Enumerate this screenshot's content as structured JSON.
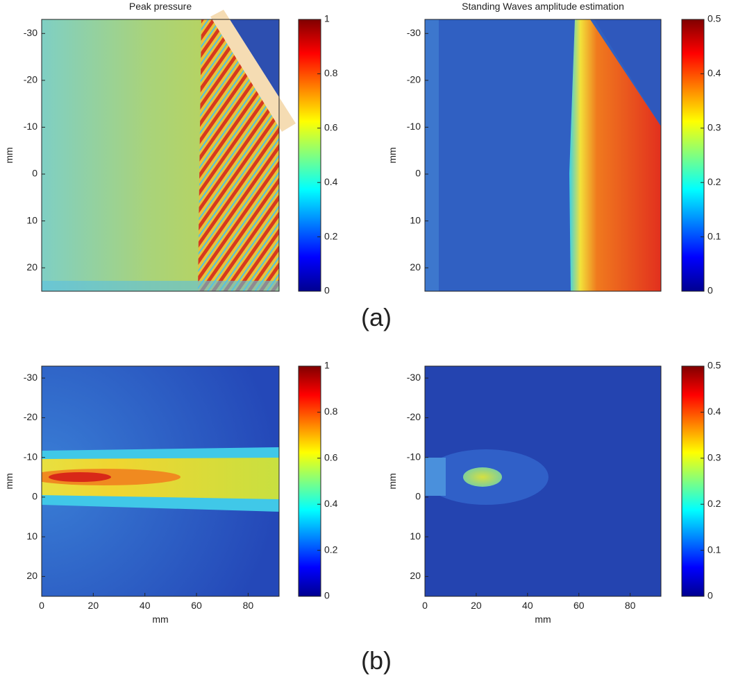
{
  "chart_data": [
    {
      "type": "heatmap",
      "title": "Peak pressure",
      "ylabel": "mm",
      "xlim": [
        0,
        92
      ],
      "ylim": [
        -33,
        25
      ],
      "yticks": [
        -30,
        -20,
        -10,
        0,
        10,
        20
      ],
      "colormap": "jet",
      "clim": [
        0,
        1
      ],
      "cticks": [
        0,
        0.2,
        0.4,
        0.6,
        0.8,
        1
      ]
    },
    {
      "type": "heatmap",
      "title": "Standing Waves amplitude estimation",
      "ylabel": "mm",
      "xlim": [
        0,
        92
      ],
      "ylim": [
        -33,
        25
      ],
      "yticks": [
        -30,
        -20,
        -10,
        0,
        10,
        20
      ],
      "colormap": "jet",
      "clim": [
        0,
        0.5
      ],
      "cticks": [
        0,
        0.1,
        0.2,
        0.3,
        0.4,
        0.5
      ]
    },
    {
      "type": "heatmap",
      "xlabel": "mm",
      "ylabel": "mm",
      "xlim": [
        0,
        92
      ],
      "xticks": [
        0,
        20,
        40,
        60,
        80
      ],
      "ylim": [
        -33,
        25
      ],
      "yticks": [
        -30,
        -20,
        -10,
        0,
        10,
        20
      ],
      "colormap": "jet",
      "clim": [
        0,
        1
      ],
      "cticks": [
        0,
        0.2,
        0.4,
        0.6,
        0.8,
        1
      ]
    },
    {
      "type": "heatmap",
      "xlabel": "mm",
      "ylabel": "mm",
      "xlim": [
        0,
        92
      ],
      "xticks": [
        0,
        20,
        40,
        60,
        80
      ],
      "ylim": [
        -33,
        25
      ],
      "yticks": [
        -30,
        -20,
        -10,
        0,
        10,
        20
      ],
      "colormap": "jet",
      "clim": [
        0,
        0.5
      ],
      "cticks": [
        0,
        0.1,
        0.2,
        0.3,
        0.4,
        0.5
      ]
    }
  ],
  "panel_labels": [
    "(a)",
    "(b)"
  ]
}
